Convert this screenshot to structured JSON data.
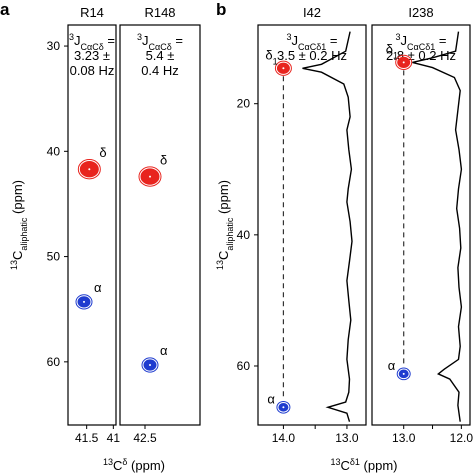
{
  "figure": {
    "panel_a_label": "a",
    "panel_b_label": "b"
  },
  "chart_data": [
    {
      "type": "scatter",
      "panel": "a",
      "xlabel": "13Cδ (ppm)",
      "ylabel": "13Caliphatic (ppm)",
      "ylim": [
        28,
        66
      ],
      "y_ticks": [
        30,
        40,
        50,
        60
      ],
      "subpanels": [
        {
          "title": "R14",
          "annotation": [
            "3JCαCδ =",
            "3.23 ±",
            "0.08 Hz"
          ],
          "xlim": [
            41.85,
            40.95
          ],
          "x_ticks": [
            41.5,
            41
          ],
          "x_tick_labels": [
            "41.5",
            "41"
          ],
          "peaks": [
            {
              "label": "δ",
              "x": 41.45,
              "y": 41.7,
              "color": "#e8241e",
              "size": "large"
            },
            {
              "label": "α",
              "x": 41.55,
              "y": 54.3,
              "color": "#1f3ccf",
              "size": "medium"
            }
          ]
        },
        {
          "title": "R148",
          "annotation": [
            "3JCαCδ =",
            "5.4 ±",
            "0.4 Hz"
          ],
          "xlim": [
            42.75,
            41.95
          ],
          "x_ticks": [
            42.5
          ],
          "x_tick_labels": [
            "42.5"
          ],
          "peaks": [
            {
              "label": "δ",
              "x": 42.45,
              "y": 42.4,
              "color": "#e8241e",
              "size": "large"
            },
            {
              "label": "α",
              "x": 42.45,
              "y": 60.3,
              "color": "#1f3ccf",
              "size": "medium"
            }
          ]
        }
      ]
    },
    {
      "type": "scatter",
      "panel": "b",
      "xlabel": "13Cδ1 (ppm)",
      "ylabel": "13Caliphatic (ppm)",
      "ylim": [
        8,
        69
      ],
      "y_ticks": [
        20,
        40,
        60
      ],
      "subpanels": [
        {
          "title": "I42",
          "annotation": [
            "3JCαCδ1 =",
            "3.5 ± 0.2 Hz"
          ],
          "xlim": [
            14.4,
            12.7
          ],
          "x_ticks": [
            14.0,
            13.5,
            13.0
          ],
          "x_tick_labels": [
            "14.0",
            "",
            "13.0"
          ],
          "dashed_x": 14.0,
          "peaks": [
            {
              "label": "δ1",
              "x": 14.0,
              "y": 14.6,
              "color": "#e8241e",
              "size": "medium"
            },
            {
              "label": "α",
              "x": 14.0,
              "y": 66.3,
              "color": "#1f3ccf",
              "size": "small"
            }
          ],
          "projection_1d": {
            "y": [
              9,
              12,
              14,
              14.6,
              15.2,
              17,
              19,
              22,
              24,
              27,
              30,
              33,
              35,
              38,
              41,
              44,
              47,
              50,
              53,
              56,
              59,
              62,
              64,
              65.5,
              66.3,
              67.2,
              68.5
            ],
            "x": [
              12.95,
              13.02,
              13.4,
              13.7,
              13.4,
              13.05,
              12.98,
              12.95,
              13.0,
              12.97,
              12.93,
              12.98,
              13.0,
              12.95,
              12.92,
              12.96,
              13.0,
              12.97,
              12.94,
              12.98,
              13.0,
              12.96,
              12.97,
              13.02,
              13.3,
              13.0,
              12.96
            ]
          }
        },
        {
          "title": "I238",
          "annotation": [
            "3JCαCδ1 =",
            "2.8 ± 0.2 Hz"
          ],
          "xlim": [
            13.55,
            11.85
          ],
          "x_ticks": [
            13.0,
            12.5,
            12.0
          ],
          "x_tick_labels": [
            "13.0",
            "",
            "12.0"
          ],
          "dashed_x": 13.0,
          "peaks": [
            {
              "label": "δ1",
              "x": 13.0,
              "y": 13.7,
              "color": "#e8241e",
              "size": "medium"
            },
            {
              "label": "α",
              "x": 13.0,
              "y": 61.2,
              "color": "#1f3ccf",
              "size": "small"
            }
          ],
          "projection_1d": {
            "y": [
              9,
              12,
              13,
              13.7,
              14.5,
              16,
              18,
              21,
              24,
              27,
              30,
              33,
              36,
              39,
              42,
              45,
              48,
              51,
              54,
              57,
              59,
              60.5,
              61.2,
              62,
              64,
              66,
              68.5
            ],
            "x": [
              12.05,
              12.1,
              12.5,
              12.85,
              12.5,
              12.12,
              12.02,
              12.06,
              12.1,
              12.04,
              12.0,
              12.05,
              12.08,
              12.03,
              12.01,
              12.06,
              12.04,
              12.0,
              12.05,
              12.02,
              12.05,
              12.3,
              12.4,
              12.2,
              12.04,
              12.06,
              12.02
            ]
          }
        }
      ]
    }
  ]
}
